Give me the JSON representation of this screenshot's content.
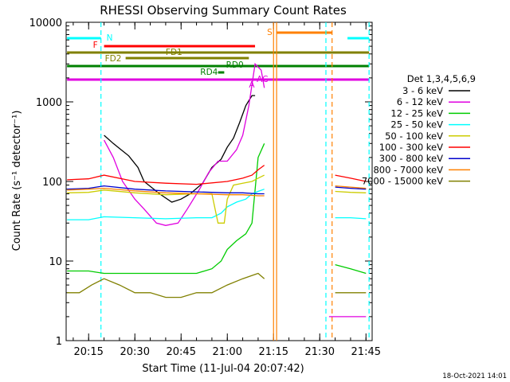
{
  "chart_data": {
    "type": "line",
    "title": "RHESSI Observing Summary Count Rates",
    "xlabel": "Start Time (11-Jul-04 20:07:42)",
    "ylabel": "Count Rate (s⁻¹ detector⁻¹)",
    "y_scale": "log",
    "ylim": [
      1,
      10000
    ],
    "xlim": [
      "20:07:42",
      "21:47:00"
    ],
    "x_ticks": [
      "20:15",
      "20:30",
      "20:45",
      "21:00",
      "21:15",
      "21:30",
      "21:45"
    ],
    "y_ticks": [
      "1",
      "10",
      "100",
      "1000",
      "10000"
    ],
    "legend_title": "Det 1,3,4,5,6,9",
    "timestamp": "18-Oct-2021 14:01",
    "series": [
      {
        "name": "3 - 6 keV",
        "color": "#000000",
        "x": [
          "20:08",
          "20:14",
          "20:20",
          "20:23",
          "20:25",
          "20:28",
          "20:31",
          "20:33",
          "20:38",
          "20:42",
          "20:45",
          "20:48",
          "20:52",
          "20:55",
          "20:58",
          "21:00",
          "21:02",
          "21:04",
          "21:06",
          "21:08",
          "21:09"
        ],
        "y": [
          null,
          null,
          380,
          300,
          260,
          210,
          150,
          100,
          70,
          55,
          60,
          70,
          95,
          150,
          190,
          270,
          350,
          550,
          900,
          1200,
          1200
        ]
      },
      {
        "name": "6 - 12 keV",
        "color": "#e000e0",
        "x": [
          "20:08",
          "20:14",
          "20:20",
          "20:23",
          "20:26",
          "20:30",
          "20:33",
          "20:37",
          "20:40",
          "20:44",
          "20:47",
          "20:51",
          "20:54",
          "20:57",
          "21:00",
          "21:03",
          "21:05",
          "21:07",
          "21:09",
          "21:11",
          "21:12",
          "21:31",
          "21:33",
          "21:38",
          "21:42",
          "21:45"
        ],
        "y": [
          null,
          null,
          330,
          200,
          100,
          60,
          45,
          30,
          28,
          30,
          45,
          80,
          130,
          180,
          180,
          250,
          380,
          900,
          3000,
          2500,
          1500,
          null,
          2,
          2,
          2,
          2
        ]
      },
      {
        "name": "12 - 25 keV",
        "color": "#00cc00",
        "x": [
          "20:08",
          "20:15",
          "20:20",
          "20:30",
          "20:40",
          "20:50",
          "20:55",
          "20:58",
          "21:00",
          "21:03",
          "21:06",
          "21:08",
          "21:10",
          "21:12",
          "21:31",
          "21:35",
          "21:40",
          "21:45"
        ],
        "y": [
          7.5,
          7.5,
          7,
          7,
          7,
          7,
          8,
          10,
          14,
          18,
          22,
          30,
          200,
          300,
          null,
          9,
          8,
          7
        ]
      },
      {
        "name": "25 - 50 keV",
        "color": "#00ffff",
        "x": [
          "20:08",
          "20:15",
          "20:20",
          "20:30",
          "20:40",
          "20:50",
          "20:55",
          "20:58",
          "21:00",
          "21:03",
          "21:06",
          "21:08",
          "21:10",
          "21:12",
          "21:31",
          "21:35",
          "21:40",
          "21:45"
        ],
        "y": [
          33,
          33,
          36,
          35,
          34,
          35,
          35,
          40,
          48,
          55,
          60,
          70,
          75,
          80,
          null,
          35,
          35,
          34
        ]
      },
      {
        "name": "50 - 100 keV",
        "color": "#cccc00",
        "x": [
          "20:08",
          "20:15",
          "20:20",
          "20:30",
          "20:40",
          "20:50",
          "20:55",
          "20:57",
          "20:59",
          "21:00",
          "21:02",
          "21:05",
          "21:08",
          "21:10",
          "21:12",
          "21:31",
          "21:35",
          "21:40",
          "21:45"
        ],
        "y": [
          72,
          73,
          78,
          72,
          68,
          70,
          70,
          30,
          30,
          60,
          90,
          95,
          100,
          110,
          120,
          null,
          75,
          73,
          72
        ]
      },
      {
        "name": "100 - 300 keV",
        "color": "#ff0000",
        "x": [
          "20:08",
          "20:15",
          "20:20",
          "20:30",
          "20:40",
          "20:50",
          "21:00",
          "21:05",
          "21:08",
          "21:10",
          "21:12",
          "21:31",
          "21:35",
          "21:40",
          "21:45"
        ],
        "y": [
          105,
          108,
          120,
          100,
          95,
          92,
          100,
          110,
          120,
          140,
          160,
          null,
          120,
          110,
          100
        ]
      },
      {
        "name": "300 - 800 keV",
        "color": "#0000cc",
        "x": [
          "20:08",
          "20:15",
          "20:20",
          "20:30",
          "20:40",
          "20:50",
          "21:00",
          "21:05",
          "21:10",
          "21:12",
          "21:31",
          "21:35",
          "21:40",
          "21:45"
        ],
        "y": [
          80,
          82,
          88,
          80,
          76,
          74,
          72,
          72,
          70,
          70,
          null,
          85,
          82,
          80
        ]
      },
      {
        "name": "800 - 7000 keV",
        "color": "#ff8000",
        "x": [
          "20:08",
          "20:15",
          "20:20",
          "20:30",
          "20:40",
          "20:50",
          "21:00",
          "21:05",
          "21:10",
          "21:12",
          "21:31",
          "21:35",
          "21:40",
          "21:45"
        ],
        "y": [
          78,
          80,
          82,
          76,
          72,
          70,
          68,
          68,
          66,
          66,
          null,
          88,
          85,
          82
        ]
      },
      {
        "name": "7000 - 15000 keV",
        "color": "#808000",
        "x": [
          "20:08",
          "20:12",
          "20:16",
          "20:20",
          "20:25",
          "20:30",
          "20:35",
          "20:40",
          "20:45",
          "20:50",
          "20:55",
          "21:00",
          "21:05",
          "21:10",
          "21:12",
          "21:31",
          "21:35",
          "21:40",
          "21:45"
        ],
        "y": [
          4,
          4,
          5,
          6,
          5,
          4,
          4,
          3.5,
          3.5,
          4,
          4,
          5,
          6,
          7,
          6,
          null,
          4,
          4,
          4
        ]
      }
    ],
    "flag_bars": [
      {
        "label": "N",
        "color": "#00ffff",
        "segments": [
          [
            "20:08",
            "20:19"
          ],
          [
            "21:39",
            "21:46"
          ]
        ]
      },
      {
        "label": "F",
        "color": "#ff0000",
        "segments": [
          [
            "20:20",
            "21:09"
          ]
        ]
      },
      {
        "label": "FD1",
        "color": "#808000",
        "segments": [
          [
            "20:08",
            "21:46"
          ]
        ]
      },
      {
        "label": "FD2",
        "color": "#808000",
        "segments": [
          [
            "20:27",
            "21:07"
          ]
        ]
      },
      {
        "label": "RD0",
        "color": "#008000",
        "segments": [
          [
            "20:08",
            "21:46"
          ]
        ]
      },
      {
        "label": "RD4",
        "color": "#008000",
        "segments": [
          [
            "20:57",
            "20:59"
          ]
        ]
      },
      {
        "label": "S",
        "color": "#ff8000",
        "segments": [
          [
            "21:16",
            "21:34"
          ]
        ]
      },
      {
        "label": "A",
        "color": "#e000e0",
        "segments": [
          [
            "20:08",
            "21:46"
          ]
        ]
      },
      {
        "label": "AC",
        "color": "#e000e0",
        "segments": []
      }
    ],
    "vertical_markers": [
      {
        "time": "20:19",
        "color": "#00ffff",
        "style": "dashed"
      },
      {
        "time": "21:15",
        "color": "#ff8000",
        "style": "solid"
      },
      {
        "time": "21:16",
        "color": "#ff8000",
        "style": "solid"
      },
      {
        "time": "21:32",
        "color": "#00ffff",
        "style": "dashed"
      },
      {
        "time": "21:34",
        "color": "#ff8000",
        "style": "dashed"
      },
      {
        "time": "21:46",
        "color": "#00ffff",
        "style": "dashed"
      }
    ]
  }
}
